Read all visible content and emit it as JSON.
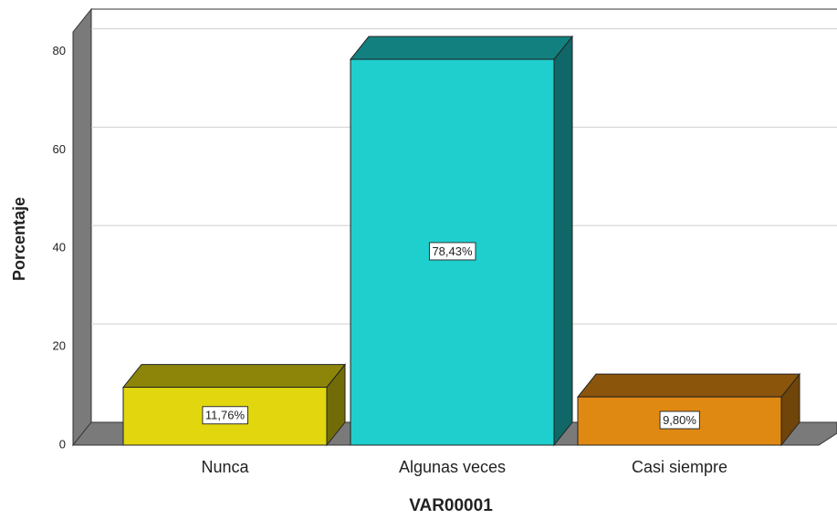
{
  "chart_data": {
    "type": "bar3d",
    "x_label": "VAR00001",
    "y_label": "Porcentaje",
    "categories": [
      "Nunca",
      "Algunas veces",
      "Casi siempre"
    ],
    "values": [
      11.76,
      78.43,
      9.8
    ],
    "value_labels": [
      "11,76%",
      "78,43%",
      "9,80%"
    ],
    "colors": [
      "#e2d70f",
      "#1ecfce",
      "#e08912"
    ],
    "ylim": [
      0,
      84
    ],
    "yticks": [
      0,
      20,
      40,
      60,
      80
    ],
    "grid": true
  }
}
